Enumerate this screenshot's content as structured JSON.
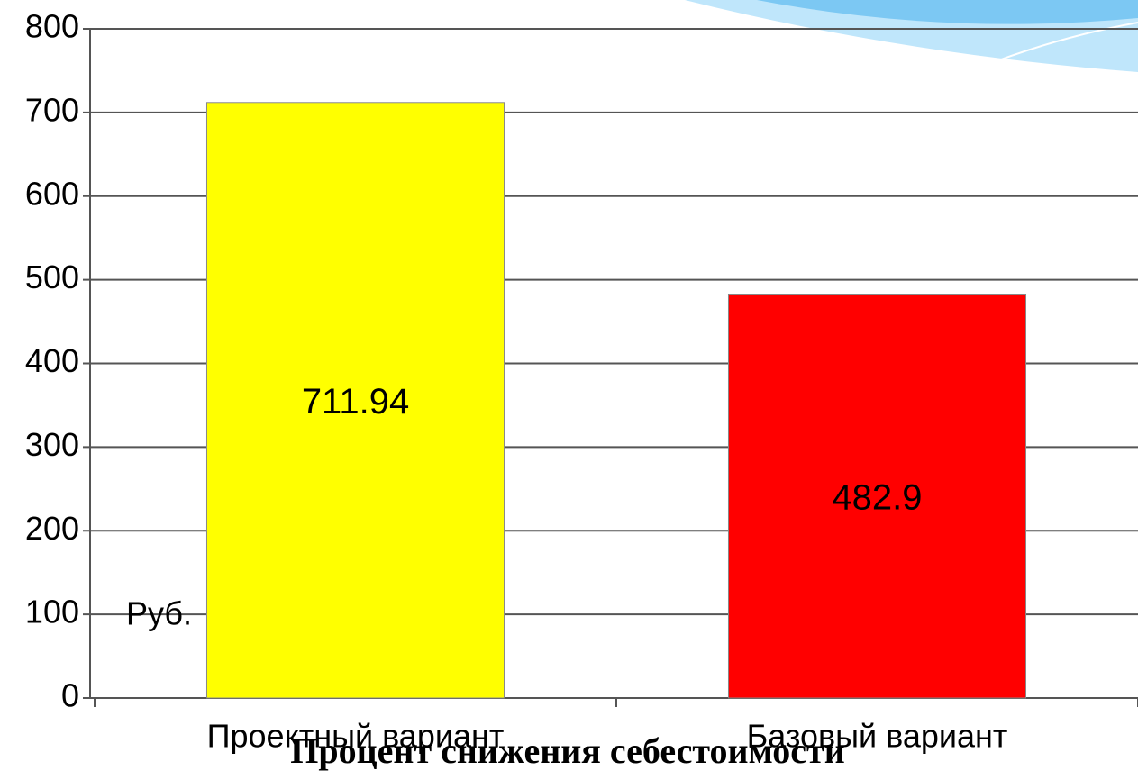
{
  "chart_data": {
    "type": "bar",
    "title": "Процент снижения себестоимости",
    "annotation": "Руб.",
    "categories": [
      "Проектный вариант",
      "Базовый вариант"
    ],
    "values": [
      711.94,
      482.9
    ],
    "colors": [
      "#ffff00",
      "#ff0000"
    ],
    "ylim": [
      0,
      800
    ],
    "yticks": [
      0,
      100,
      200,
      300,
      400,
      500,
      600,
      700,
      800
    ],
    "grid": true
  }
}
